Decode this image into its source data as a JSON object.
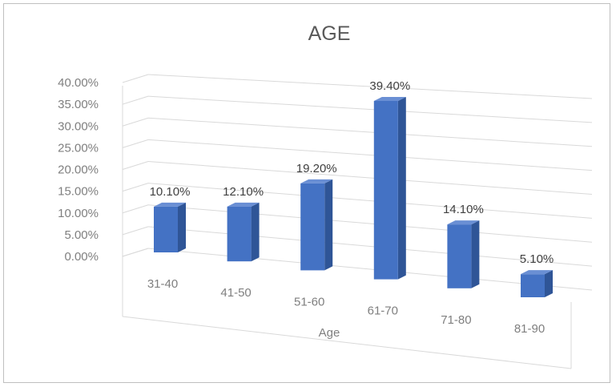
{
  "chart_data": {
    "type": "bar",
    "title": "AGE",
    "xlabel": "Age",
    "ylabel": "",
    "categories": [
      "31-40",
      "41-50",
      "51-60",
      "61-70",
      "71-80",
      "81-90"
    ],
    "values": [
      10.1,
      12.1,
      19.2,
      39.4,
      14.1,
      5.1
    ],
    "data_labels": [
      "10.10%",
      "12.10%",
      "19.20%",
      "39.40%",
      "14.10%",
      "5.10%"
    ],
    "ylim": [
      0,
      40
    ],
    "y_ticks": [
      "0.00%",
      "5.00%",
      "10.00%",
      "15.00%",
      "20.00%",
      "25.00%",
      "30.00%",
      "35.00%",
      "40.00%"
    ],
    "grid": true,
    "style": "3d-column",
    "colors": {
      "bar_front": "#4472c4",
      "bar_side": "#2f5597",
      "bar_top": "#6a8fd4",
      "grid": "#d9d9d9"
    }
  }
}
